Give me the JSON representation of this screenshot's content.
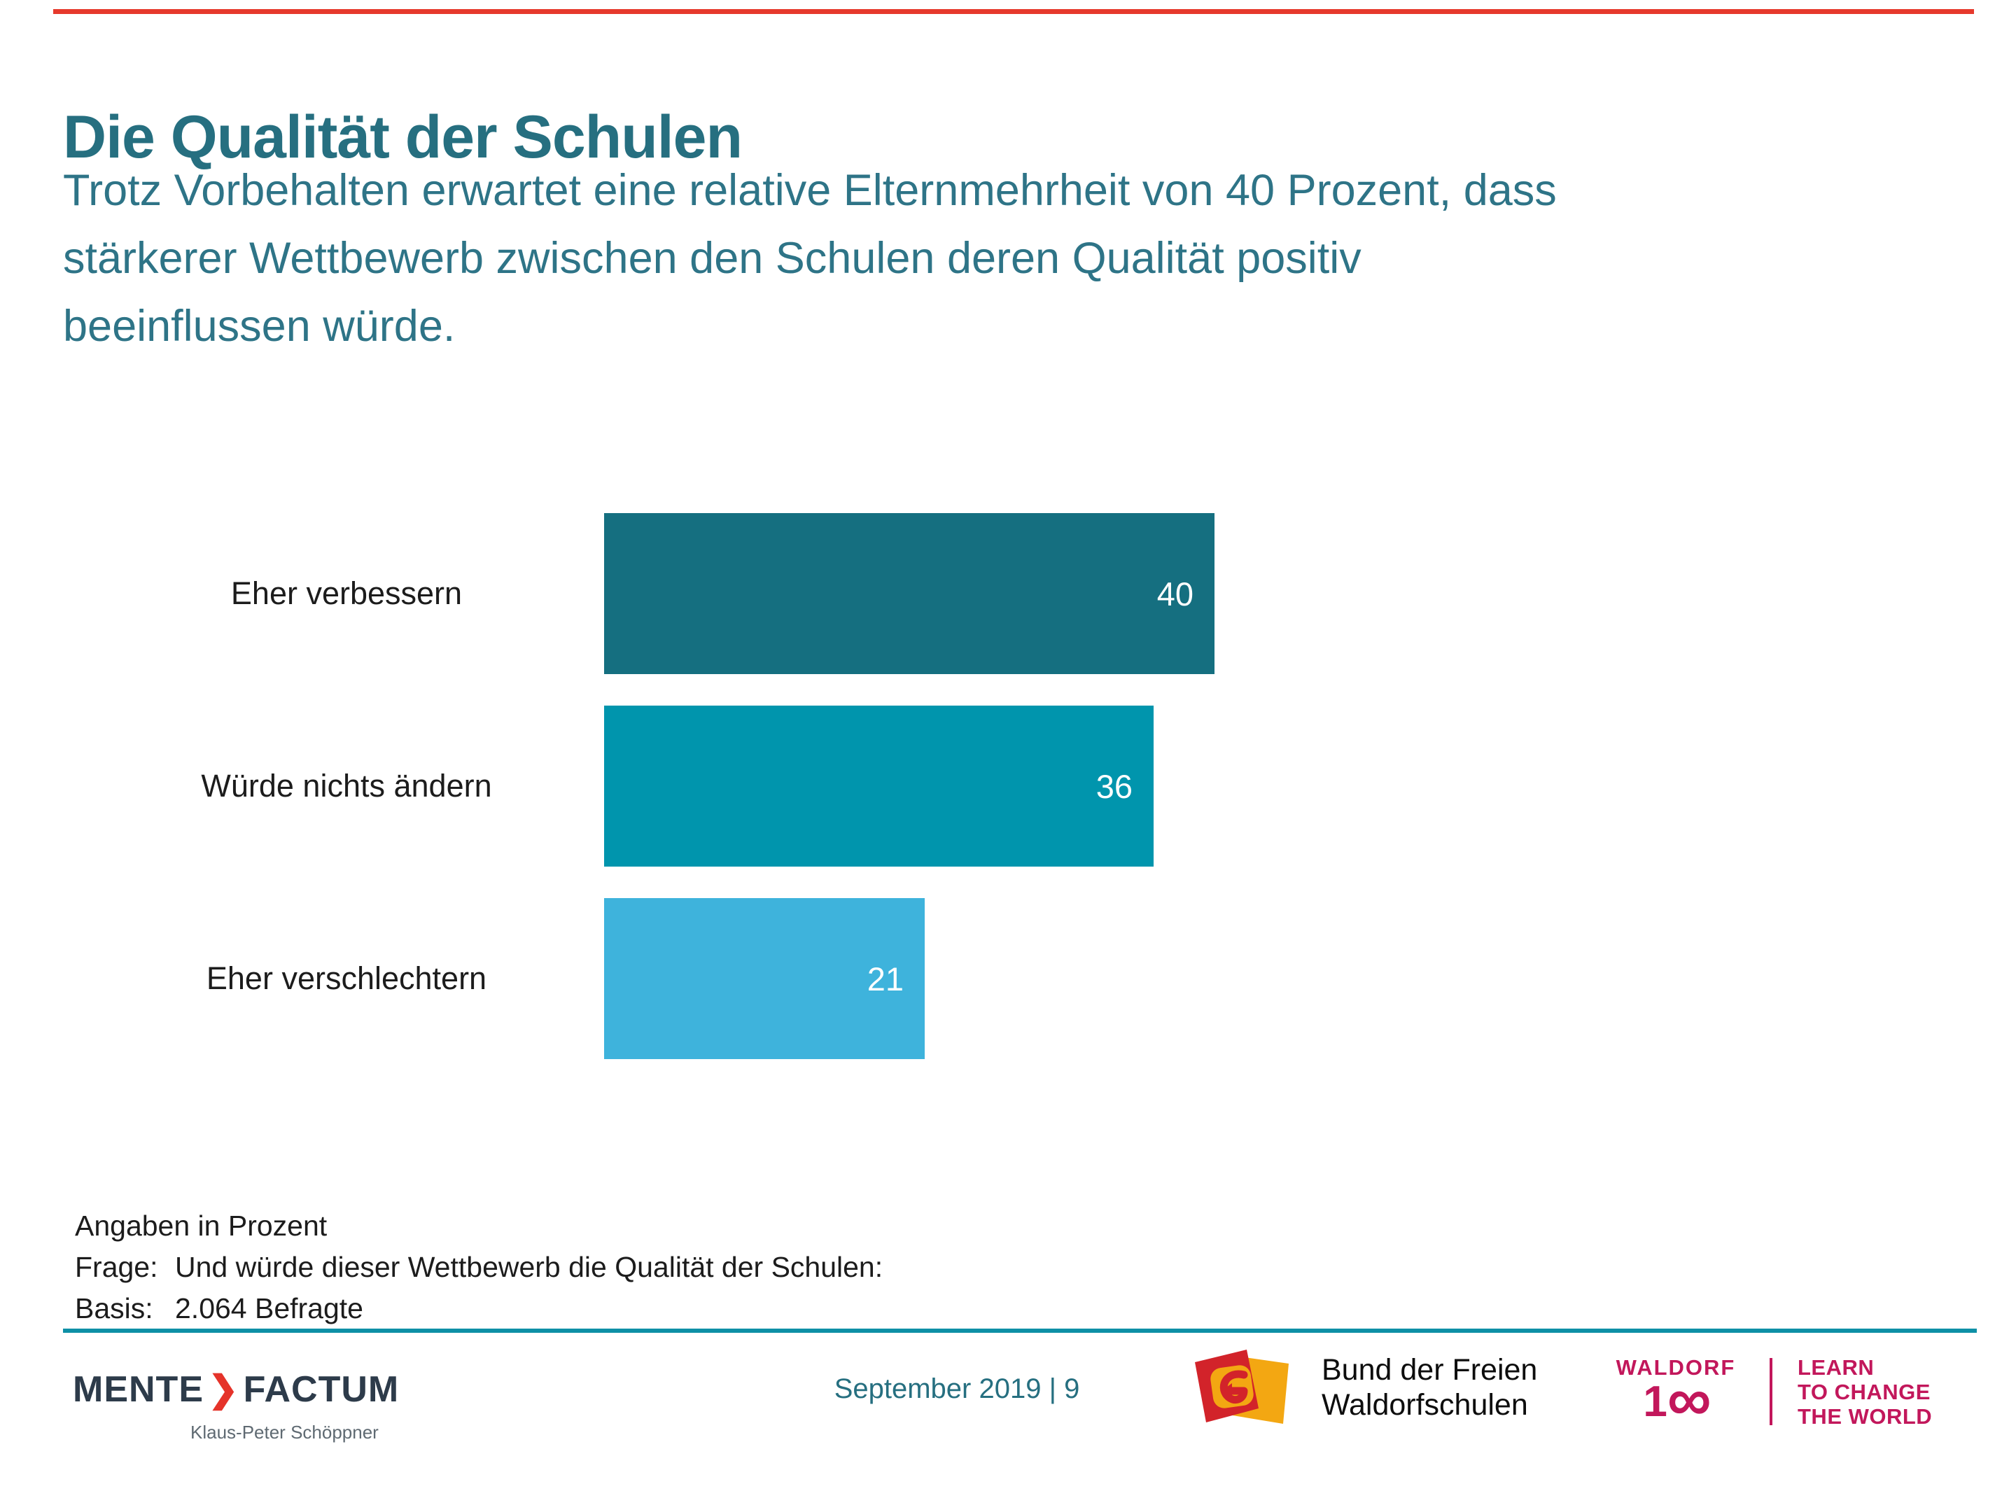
{
  "slide": {
    "title": "Die Qualität der Schulen",
    "subtitle_lines": [
      "Trotz Vorbehalten erwartet eine relative Elternmehrheit von 40 Prozent, dass",
      "stärkerer Wettbewerb zwischen den Schulen deren Qualität positiv",
      "beeinflussen würde."
    ],
    "notes": {
      "unit_note": "Angaben in Prozent",
      "frage_label": "Frage:",
      "frage_text": "Und würde dieser Wettbewerb die Qualität der Schulen:",
      "basis_label": "Basis:",
      "basis_text": "2.064 Befragte"
    },
    "footer": {
      "agency_name_left": "MENTE",
      "agency_chevron": "❯",
      "agency_name_right": "FACTUM",
      "agency_person": "Klaus-Peter Schöppner",
      "date_page": "September 2019 | 9",
      "partner_line1": "Bund der Freien",
      "partner_line2": "Waldorfschulen",
      "waldorf_word": "WALDORF",
      "waldorf_number_prefix": "1",
      "waldorf_number_infinity": "∞",
      "waldorf_claim_lines": [
        "LEARN",
        "TO CHANGE",
        "THE WORLD"
      ]
    }
  },
  "chart_data": {
    "type": "bar",
    "orientation": "horizontal",
    "categories": [
      "Eher verbessern",
      "Würde nichts ändern",
      "Eher verschlechtern"
    ],
    "values": [
      40,
      36,
      21
    ],
    "unit": "Prozent",
    "bar_colors": [
      "#156f80",
      "#0095ad",
      "#3eb3dc"
    ],
    "value_label_position": "inside-right",
    "value_label_color": "#ffffff",
    "xlim": [
      0,
      46
    ],
    "grid": false,
    "axes_visible": false,
    "legend": "none"
  },
  "colors": {
    "accent_red": "#e6392c",
    "title_teal": "#266f80",
    "subtitle_teal": "#2e7487",
    "divider_teal": "#0e90a6",
    "date_teal": "#266f80",
    "text_dark": "#1c1c1c",
    "mente_slate": "#2d3b4a",
    "mente_red": "#e5332a",
    "person_gray": "#5f6a72",
    "partner_text_black": "#0d0d0d",
    "waldorf_magenta": "#c2175b",
    "bund_red": "#d2232a",
    "bund_yellow": "#f3a712"
  }
}
